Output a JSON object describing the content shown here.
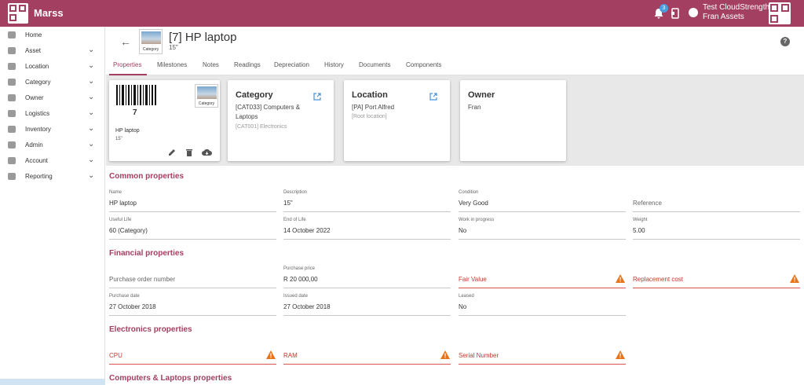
{
  "app": {
    "title": "Marss",
    "notification_count": "3",
    "user_line1": "Test CloudStrength",
    "user_line2": "Fran Assets"
  },
  "sidebar": {
    "items": [
      {
        "label": "Home",
        "icon": "home-icon",
        "chevron": false
      },
      {
        "label": "Asset",
        "icon": "asset-icon",
        "chevron": true
      },
      {
        "label": "Location",
        "icon": "location-icon",
        "chevron": true
      },
      {
        "label": "Category",
        "icon": "category-icon",
        "chevron": true
      },
      {
        "label": "Owner",
        "icon": "owner-icon",
        "chevron": true
      },
      {
        "label": "Logistics",
        "icon": "truck-icon",
        "chevron": true
      },
      {
        "label": "Inventory",
        "icon": "cart-icon",
        "chevron": true
      },
      {
        "label": "Admin",
        "icon": "gear-icon",
        "chevron": true
      },
      {
        "label": "Account",
        "icon": "account-icon",
        "chevron": true
      },
      {
        "label": "Reporting",
        "icon": "pie-chart-icon",
        "chevron": true
      }
    ]
  },
  "header": {
    "title": "[7] HP laptop",
    "subtitle": "15\"",
    "thumb_caption": "Category"
  },
  "tabs": [
    "Properties",
    "Milestones",
    "Notes",
    "Readings",
    "Depreciation",
    "History",
    "Documents",
    "Components"
  ],
  "cards": {
    "asset": {
      "barcode_number": "7",
      "name": "HP laptop",
      "sub": "15\"",
      "thumb_caption": "Category"
    },
    "category": {
      "title": "Category",
      "line": "[CAT033] Computers & Laptops",
      "faint": "[CAT001] Electronics"
    },
    "location": {
      "title": "Location",
      "line": "[PA] Port Alfred",
      "faint": "[Root location]"
    },
    "owner": {
      "title": "Owner",
      "line": "Fran"
    }
  },
  "sections": {
    "common": "Common properties",
    "financial": "Financial properties",
    "electronics": "Electronics properties",
    "computers": "Computers & Laptops properties"
  },
  "common": {
    "name": {
      "label": "Name",
      "value": "HP laptop"
    },
    "description": {
      "label": "Description",
      "value": "15\""
    },
    "condition": {
      "label": "Condition",
      "value": "Very Good"
    },
    "reference": {
      "placeholder": "Reference"
    },
    "useful_life": {
      "label": "Useful Life",
      "value": "60 (Category)"
    },
    "end_of_life": {
      "label": "End of Life",
      "value": "14 October 2022"
    },
    "wip": {
      "label": "Work in progress",
      "value": "No"
    },
    "weight": {
      "label": "Weight",
      "value": "5.00"
    }
  },
  "financial": {
    "po": {
      "placeholder": "Purchase order number"
    },
    "price": {
      "label": "Purchase price",
      "value": "R 20 000,00"
    },
    "fair_value": {
      "placeholder": "Fair Value"
    },
    "replacement": {
      "placeholder": "Replacement cost"
    },
    "purchase_date": {
      "label": "Purchase date",
      "value": "27 October 2018"
    },
    "issued_date": {
      "label": "Issued date",
      "value": "27 October 2018"
    },
    "leased": {
      "label": "Leased",
      "value": "No"
    }
  },
  "electronics": {
    "cpu": {
      "placeholder": "CPU"
    },
    "ram": {
      "placeholder": "RAM"
    },
    "serial": {
      "placeholder": "Serial Number"
    }
  },
  "colors": {
    "brand": "#a33f60",
    "warning": "#e8741a",
    "error": "#c0392b"
  }
}
